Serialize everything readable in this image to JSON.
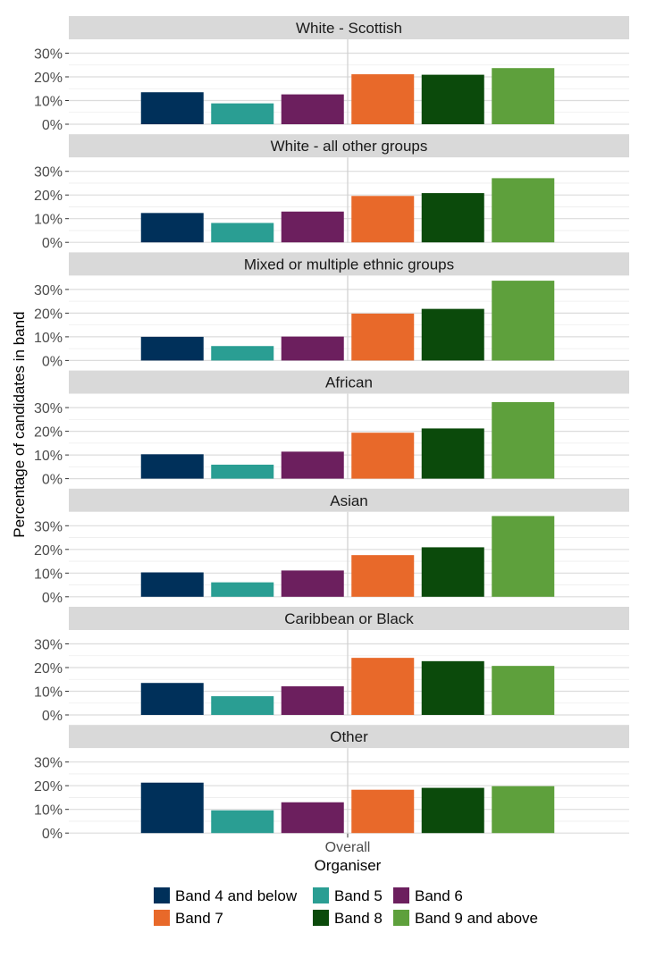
{
  "chart_data": {
    "type": "bar",
    "x_category": "Overall",
    "xlabel": "Organiser",
    "ylabel": "Percentage of candidates in band",
    "ylim": [
      0,
      33
    ],
    "yticks": [
      "0%",
      "10%",
      "20%",
      "30%"
    ],
    "series": [
      {
        "name": "Band 4 and below",
        "color": "#00305a"
      },
      {
        "name": "Band 5",
        "color": "#2a9e93"
      },
      {
        "name": "Band 6",
        "color": "#6c1f5e"
      },
      {
        "name": "Band 7",
        "color": "#e8692a"
      },
      {
        "name": "Band 8",
        "color": "#0b4a0b"
      },
      {
        "name": "Band 9 and above",
        "color": "#5ea03c"
      }
    ],
    "panels": [
      {
        "label": "White - Scottish",
        "values": [
          13.5,
          8.8,
          12.6,
          21.1,
          20.9,
          23.7
        ]
      },
      {
        "label": "White - all other groups",
        "values": [
          12.4,
          8.2,
          13.0,
          19.6,
          20.8,
          27.1
        ]
      },
      {
        "label": "Mixed or multiple ethnic groups",
        "values": [
          10.0,
          6.1,
          10.1,
          19.8,
          21.8,
          33.7
        ]
      },
      {
        "label": "African",
        "values": [
          10.3,
          5.9,
          11.4,
          19.4,
          21.2,
          32.3
        ]
      },
      {
        "label": "Asian",
        "values": [
          10.3,
          6.1,
          11.1,
          17.6,
          20.9,
          34.1
        ]
      },
      {
        "label": "Caribbean or Black",
        "values": [
          13.5,
          7.9,
          12.1,
          24.1,
          22.7,
          20.7
        ]
      },
      {
        "label": "Other",
        "values": [
          21.3,
          9.6,
          13.0,
          18.3,
          19.1,
          19.8
        ]
      }
    ],
    "legend_position": "bottom",
    "grid": true
  }
}
